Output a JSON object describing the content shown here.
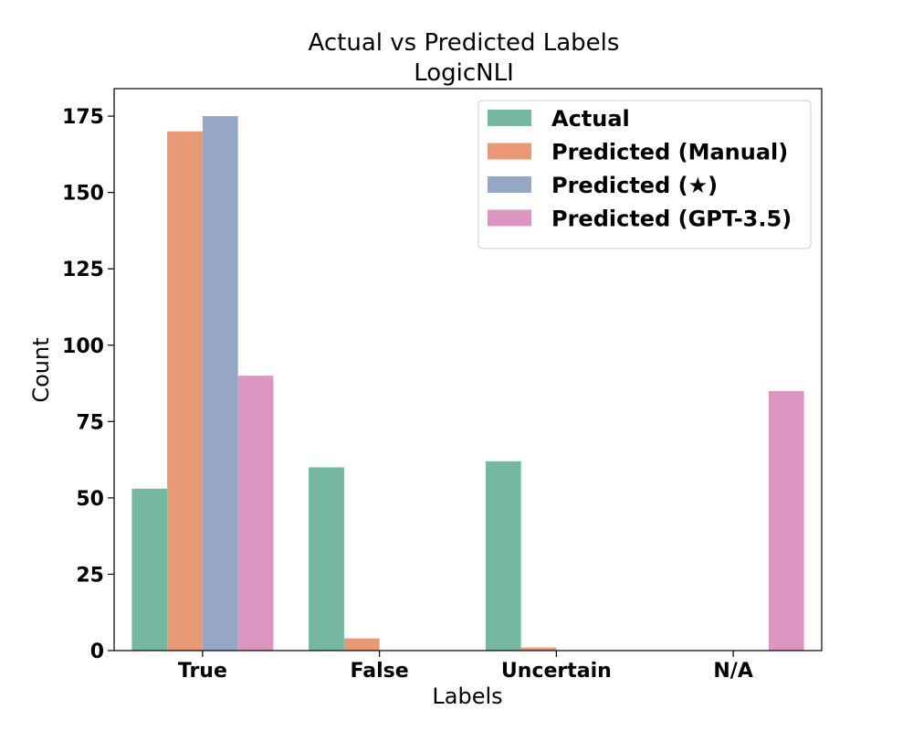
{
  "chart_data": {
    "type": "bar",
    "title": "Actual vs Predicted Labels",
    "subtitle": "LogicNLI",
    "xlabel": "Labels",
    "ylabel": "Count",
    "categories": [
      "True",
      "False",
      "Uncertain",
      "N/A"
    ],
    "ylim": [
      0,
      184
    ],
    "yticks": [
      0,
      25,
      50,
      75,
      100,
      125,
      150,
      175
    ],
    "grid": false,
    "legend_position": "top-right",
    "series": [
      {
        "name": "Actual",
        "color": "#76b7a1",
        "values": [
          53,
          60,
          62,
          0
        ]
      },
      {
        "name": "Predicted (Manual)",
        "color": "#e99876",
        "values": [
          170,
          4,
          1,
          0
        ]
      },
      {
        "name": "Predicted (★)",
        "color": "#95a6c6",
        "values": [
          175,
          0,
          0,
          0
        ]
      },
      {
        "name": "Predicted (GPT-3.5)",
        "color": "#dc95c0",
        "values": [
          90,
          0,
          0,
          85
        ]
      }
    ]
  }
}
